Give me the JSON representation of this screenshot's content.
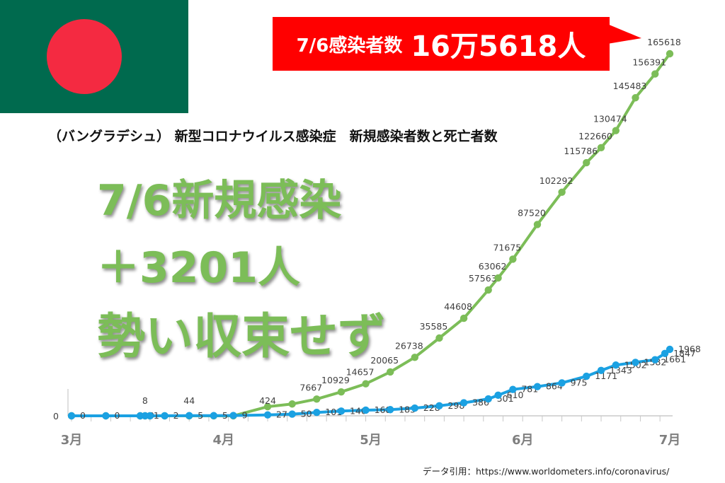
{
  "flag": {
    "colors": {
      "field": "#006a4e",
      "disc": "#f42a41"
    }
  },
  "banner": {
    "prefix": "7/6感染者数",
    "value": "16万5618人",
    "color": "#ff0000"
  },
  "title": "（バングラデシュ） 新型コロナウイルス感染症　新規感染者数と死亡者数",
  "headline": {
    "line1": "7/6新規感染",
    "line2": "＋3201人",
    "line3": "勢い収束せず",
    "color": "#7cbd58"
  },
  "source": "データ引用：https://www.worldometers.info/coronavirus/",
  "chart_data": {
    "type": "line",
    "x_months": [
      {
        "label": "3月",
        "day": 0
      },
      {
        "label": "4月",
        "day": 31
      },
      {
        "label": "5月",
        "day": 61
      },
      {
        "label": "6月",
        "day": 92
      },
      {
        "label": "7月",
        "day": 122
      }
    ],
    "series": [
      {
        "color": "#7cbd58",
        "points": [
          {
            "day": 0
          },
          {
            "day": 7
          },
          {
            "day": 14
          },
          {
            "day": 15
          },
          {
            "day": 16
          },
          {
            "day": 19
          },
          {
            "day": 24
          },
          {
            "day": 29
          },
          {
            "day": 33
          },
          {
            "day": 40,
            "v": 4186
          },
          {
            "day": 45,
            "v": 5416
          },
          {
            "day": 50,
            "v": 7667,
            "label": "7667"
          },
          {
            "day": 55,
            "v": 10929,
            "label": "10929"
          },
          {
            "day": 60,
            "v": 14657,
            "label": "14657"
          },
          {
            "day": 65,
            "v": 20065,
            "label": "20065"
          },
          {
            "day": 70,
            "v": 26738,
            "label": "26738"
          },
          {
            "day": 75,
            "v": 35585,
            "label": "35585"
          },
          {
            "day": 80,
            "v": 44608,
            "label": "44608"
          },
          {
            "day": 85,
            "v": 57563,
            "label": "57563"
          },
          {
            "day": 87,
            "v": 63062,
            "label": "63062"
          },
          {
            "day": 90,
            "v": 71675,
            "label": "71675"
          },
          {
            "day": 95,
            "v": 87520,
            "label": "87520"
          },
          {
            "day": 100,
            "v": 102292,
            "label": "102292"
          },
          {
            "day": 105,
            "v": 115786,
            "label": "115786"
          },
          {
            "day": 108,
            "v": 122660,
            "label": "122660"
          },
          {
            "day": 111,
            "v": 130474,
            "label": "130474"
          },
          {
            "day": 115,
            "v": 145483,
            "label": "145483"
          },
          {
            "day": 119,
            "v": 156391,
            "label": "156391"
          },
          {
            "day": 122,
            "v": 165618,
            "label": "165618"
          }
        ]
      },
      {
        "color": "#1ba1e2",
        "points": [
          {
            "day": 0,
            "v": 0,
            "label": "0"
          },
          {
            "day": 7,
            "v": 0,
            "label": "0"
          },
          {
            "day": 14,
            "v": 0,
            "label": "0"
          },
          {
            "day": 15,
            "v": 1,
            "label": "1"
          },
          {
            "day": 16,
            "v": 1
          },
          {
            "day": 19,
            "v": 2,
            "label": "2"
          },
          {
            "day": 24,
            "v": 5,
            "label": "5"
          },
          {
            "day": 29,
            "v": 5,
            "label": "5"
          },
          {
            "day": 33,
            "v": 9,
            "label": "9"
          },
          {
            "day": 40,
            "v": 27,
            "label": "27"
          },
          {
            "day": 45,
            "v": 50,
            "label": "50"
          },
          {
            "day": 50,
            "v": 101,
            "label": "101"
          },
          {
            "day": 55,
            "v": 140,
            "label": "140"
          },
          {
            "day": 60,
            "v": 168,
            "label": "168"
          },
          {
            "day": 65,
            "v": 183,
            "label": "183"
          },
          {
            "day": 70,
            "v": 228,
            "label": "228"
          },
          {
            "day": 75,
            "v": 298,
            "label": "298"
          },
          {
            "day": 80,
            "v": 386,
            "label": "386"
          },
          {
            "day": 85,
            "v": 501,
            "label": "501"
          },
          {
            "day": 87,
            "v": 610,
            "label": "610"
          },
          {
            "day": 90,
            "v": 781,
            "label": "781"
          },
          {
            "day": 95,
            "v": 864,
            "label": "864"
          },
          {
            "day": 100,
            "v": 975,
            "label": "975"
          },
          {
            "day": 105,
            "v": 1171,
            "label": "1171"
          },
          {
            "day": 108,
            "v": 1343,
            "label": "1343"
          },
          {
            "day": 111,
            "v": 1502,
            "label": "1502"
          },
          {
            "day": 115,
            "v": 1582,
            "label": "1582"
          },
          {
            "day": 119,
            "v": 1661,
            "label": "1661"
          },
          {
            "day": 121,
            "v": 1847,
            "label": "1847"
          },
          {
            "day": 122,
            "v": 1968,
            "label": "1968"
          }
        ]
      }
    ],
    "extra_labels": [
      {
        "text": "0",
        "day": -3,
        "v": 0
      },
      {
        "text": "8",
        "day": 15,
        "v": 8
      },
      {
        "text": "44",
        "day": 24,
        "v": 44
      },
      {
        "text": "424",
        "day": 40,
        "v": 424
      }
    ],
    "grid": false
  }
}
